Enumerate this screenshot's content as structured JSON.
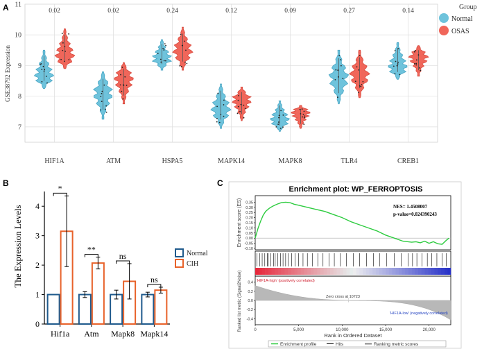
{
  "colors": {
    "normal_violin": "#6ec3dc",
    "osas_violin": "#f0665a",
    "normal_bar": "#1f5a8c",
    "cih_bar": "#e8622a",
    "enrichment": "#2ecc40",
    "grid": "#dddddd"
  },
  "panelA": {
    "label": "A",
    "ylabel": "GSE38792 Expression",
    "legend_title": "Group",
    "legend": [
      "Normal",
      "OSAS"
    ]
  },
  "panelB": {
    "label": "B",
    "ylabel": "The Expression Levels",
    "legend": [
      "Normal",
      "CIH"
    ]
  },
  "panelC": {
    "label": "C",
    "title": "Enrichment plot: WP_FERROPTOSIS",
    "es_ylabel": "Enrichment score (ES)",
    "rm_ylabel": "Ranked list metric (Signal2Noise)",
    "nes": "NES= 1.4508007",
    "pvalue": "p-value=0.024390243",
    "high_label": "'HIF1A-high' (positively correlated)",
    "low_label": "'HIF1A-low' (negatively correlated)",
    "zero_cross": "Zero cross at 10723",
    "xlabel": "Rank in Ordered Dataset",
    "legend": [
      "Enrichment profile",
      "Hits",
      "Ranking metric scores"
    ]
  },
  "chart_data": [
    {
      "type": "violin",
      "title": "",
      "xlabel": "",
      "ylabel": "GSE38792 Expression",
      "ylim": [
        6.5,
        11.0
      ],
      "yticks": [
        7,
        8,
        9,
        10,
        11
      ],
      "categories": [
        "HIF1A",
        "ATM",
        "HSPA5",
        "MAPK14",
        "MAPK8",
        "TLR4",
        "CREB1"
      ],
      "pvalues": [
        "0.02",
        "0.02",
        "0.24",
        "0.12",
        "0.09",
        "0.27",
        "0.14"
      ],
      "series": [
        {
          "name": "Normal",
          "min": [
            8.25,
            7.25,
            8.85,
            6.95,
            6.85,
            7.75,
            8.55
          ],
          "max": [
            9.5,
            8.8,
            9.85,
            8.4,
            7.85,
            9.5,
            9.75
          ],
          "median": [
            8.6,
            8.1,
            9.2,
            7.55,
            7.2,
            8.6,
            8.9
          ]
        },
        {
          "name": "OSAS",
          "min": [
            8.9,
            7.75,
            8.85,
            7.2,
            6.95,
            7.95,
            8.65
          ],
          "max": [
            10.2,
            9.1,
            10.25,
            8.3,
            7.7,
            9.5,
            9.65
          ],
          "median": [
            9.25,
            8.6,
            9.45,
            7.9,
            7.5,
            8.7,
            9.3
          ]
        }
      ]
    },
    {
      "type": "bar",
      "title": "",
      "xlabel": "",
      "ylabel": "The Expression Levels",
      "ylim": [
        0,
        4.5
      ],
      "yticks": [
        0,
        1,
        2,
        3,
        4
      ],
      "categories": [
        "Hif1a",
        "Atm",
        "Mapk8",
        "Mapk14"
      ],
      "series": [
        {
          "name": "Normal",
          "values": [
            1.0,
            1.0,
            1.0,
            1.0
          ],
          "error": [
            0.0,
            0.1,
            0.15,
            0.08
          ]
        },
        {
          "name": "CIH",
          "values": [
            3.15,
            2.07,
            1.45,
            1.15
          ],
          "error": [
            1.2,
            0.2,
            0.6,
            0.1
          ]
        }
      ],
      "significance": [
        "*",
        "**",
        "ns",
        "ns"
      ]
    },
    {
      "type": "line",
      "title": "Enrichment plot: WP_FERROPTOSIS",
      "xlabel": "Rank in Ordered Dataset",
      "ylabel": "Enrichment score (ES)",
      "xlim": [
        0,
        22500
      ],
      "xticks": [
        0,
        5000,
        10000,
        15000,
        20000
      ],
      "xtick_labels": [
        "0",
        "5,000",
        "10,000",
        "15,000",
        "20,000"
      ],
      "ylim": [
        -0.1,
        0.4
      ],
      "yticks": [
        0.35,
        0.3,
        0.25,
        0.2,
        0.15,
        0.1,
        0.05,
        0.0,
        -0.05,
        -0.1
      ],
      "ytick_labels": [
        "0.35",
        "0.30",
        "0.25",
        "0.20",
        "0.15",
        "0.10",
        "0.05",
        "0.00",
        "-0.05",
        "-0.10"
      ],
      "rm_yticks": [
        0.4,
        0.2,
        0.0,
        -0.2,
        -0.4
      ],
      "rm_ytick_labels": [
        "0.4",
        "0.2",
        "0.0",
        "-0.2",
        "-0.4"
      ],
      "x": [
        0,
        300,
        600,
        900,
        1200,
        1600,
        2000,
        2500,
        3000,
        3500,
        4000,
        4500,
        5000,
        6000,
        7000,
        8000,
        9000,
        10000,
        11000,
        12000,
        13000,
        14000,
        15000,
        16000,
        17000,
        18000,
        18500,
        19000,
        19500,
        20000,
        20500,
        21000,
        21500,
        22000,
        22300
      ],
      "y": [
        0.0,
        0.09,
        0.16,
        0.22,
        0.26,
        0.29,
        0.31,
        0.33,
        0.345,
        0.35,
        0.345,
        0.33,
        0.32,
        0.3,
        0.28,
        0.26,
        0.23,
        0.2,
        0.16,
        0.13,
        0.1,
        0.07,
        0.03,
        0.0,
        -0.03,
        -0.04,
        -0.035,
        -0.045,
        -0.03,
        -0.05,
        -0.035,
        -0.055,
        -0.06,
        -0.02,
        0.0
      ],
      "hits": [
        200,
        500,
        800,
        1100,
        1400,
        1500,
        1800,
        2100,
        2300,
        2600,
        2900,
        3200,
        3500,
        3800,
        4200,
        4600,
        5000,
        5500,
        6000,
        6600,
        7200,
        7800,
        8500,
        9100,
        9800,
        10500,
        11300,
        12000,
        12800,
        13600,
        14300,
        15100,
        16000,
        16800,
        17600,
        18100,
        18600,
        19200,
        19800,
        20300,
        20900,
        21500,
        22000
      ]
    }
  ]
}
